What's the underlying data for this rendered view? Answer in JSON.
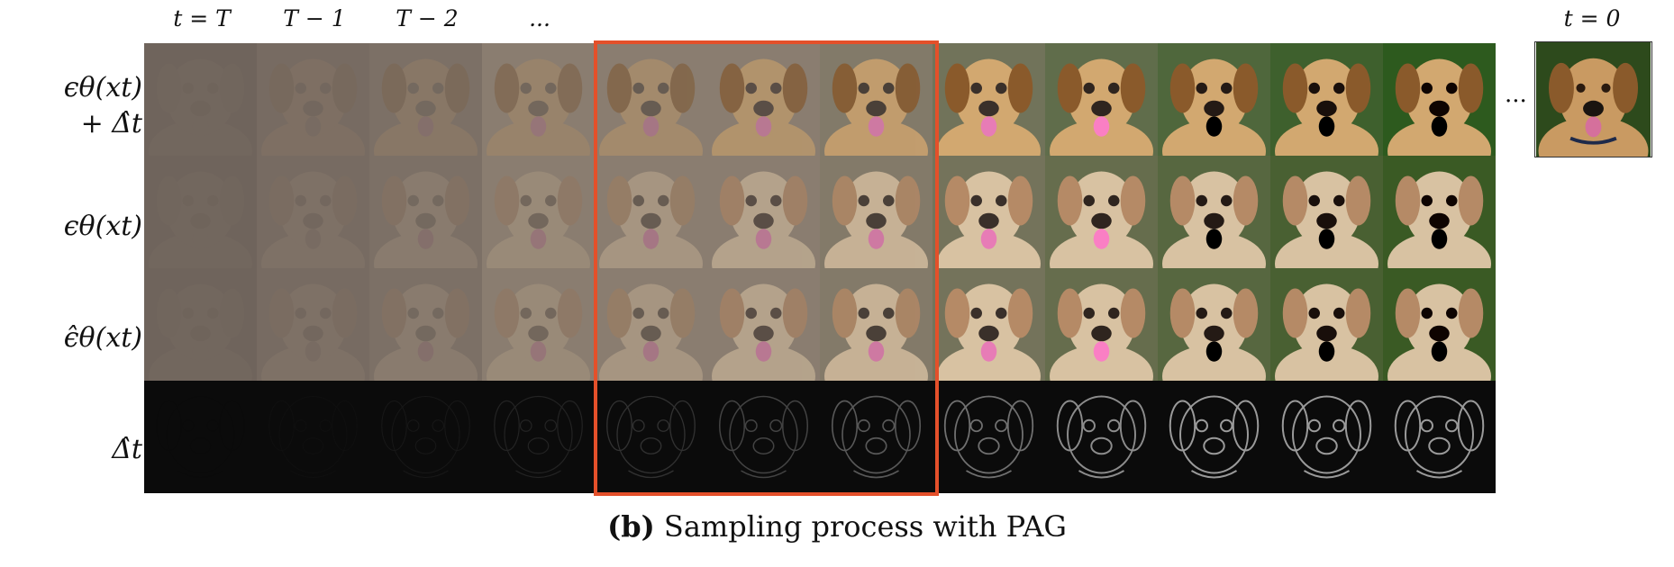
{
  "column_labels": [
    "t = T",
    "T − 1",
    "T − 2",
    "...",
    "t = 0"
  ],
  "row_labels": {
    "row1_line1": "ϵθ(xt)",
    "row1_line2": "+ Δ̂t",
    "row2": "ϵθ(xt)",
    "row3": "ϵ̂θ(xt)",
    "row4": "Δ̂t"
  },
  "ellipsis": "...",
  "caption": {
    "tag": "(b)",
    "text": "Sampling process with PAG"
  },
  "colors": {
    "highlight": "#e4502a",
    "green_bg": "#2f5a1f",
    "dog_tan": "#d8b98c",
    "tongue": "#e07bb0"
  }
}
